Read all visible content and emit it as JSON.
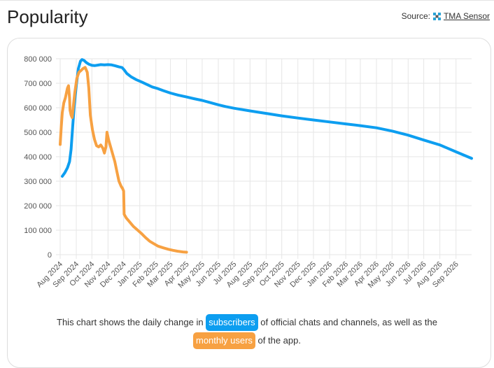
{
  "header": {
    "title": "Popularity",
    "source_label": "Source:",
    "source_link": "TMA Sensor",
    "source_icon": "sensor-logo-icon"
  },
  "caption": {
    "line1_before": "This chart shows the daily change in",
    "subscribers_label": "subscribers",
    "line1_after": "of official chats and channels, as well as the",
    "monthly_users_label": "monthly users",
    "line2_after": "of the app."
  },
  "chart_data": {
    "type": "line",
    "x_type": "date",
    "x_ticks": [
      "Aug 2024",
      "Sep 2024",
      "Oct 2024",
      "Nov 2024",
      "Dec 2024",
      "Jan 2025",
      "Feb 2025",
      "Mar 2025",
      "Apr 2025",
      "May 2025",
      "Jun 2025",
      "Jul 2025",
      "Aug 2025",
      "Sep 2025",
      "Oct 2025",
      "Nov 2025",
      "Dec 2025",
      "Jan 2026",
      "Feb 2026",
      "Mar 2026",
      "Apr 2026",
      "May 2026",
      "Jun 2026",
      "Jul 2026",
      "Aug 2026",
      "Sep 2026"
    ],
    "y_ticks": [
      0,
      100000,
      200000,
      300000,
      400000,
      500000,
      600000,
      700000,
      800000
    ],
    "y_tick_labels": [
      "0",
      "100 000",
      "200 000",
      "300 000",
      "400 000",
      "500 000",
      "600 000",
      "700 000",
      "800 000"
    ],
    "ylim": [
      0,
      800000
    ],
    "xlim": [
      "2024-08-01",
      "2026-10-01"
    ],
    "grid": true,
    "series": [
      {
        "name": "subscribers",
        "color": "#0d9ef0",
        "points": [
          [
            "2024-08-05",
            320000
          ],
          [
            "2024-08-10",
            335000
          ],
          [
            "2024-08-15",
            355000
          ],
          [
            "2024-08-19",
            380000
          ],
          [
            "2024-08-22",
            430000
          ],
          [
            "2024-08-25",
            520000
          ],
          [
            "2024-08-28",
            610000
          ],
          [
            "2024-09-01",
            690000
          ],
          [
            "2024-09-05",
            760000
          ],
          [
            "2024-09-09",
            790000
          ],
          [
            "2024-09-12",
            797000
          ],
          [
            "2024-09-16",
            793000
          ],
          [
            "2024-09-20",
            785000
          ],
          [
            "2024-09-25",
            778000
          ],
          [
            "2024-10-01",
            773000
          ],
          [
            "2024-10-06",
            772000
          ],
          [
            "2024-10-12",
            774000
          ],
          [
            "2024-10-18",
            776000
          ],
          [
            "2024-10-25",
            775000
          ],
          [
            "2024-11-01",
            776000
          ],
          [
            "2024-11-08",
            775000
          ],
          [
            "2024-11-15",
            771000
          ],
          [
            "2024-11-22",
            767000
          ],
          [
            "2024-11-28",
            764000
          ],
          [
            "2024-12-02",
            755000
          ],
          [
            "2024-12-07",
            740000
          ],
          [
            "2024-12-15",
            727000
          ],
          [
            "2024-12-25",
            715000
          ],
          [
            "2025-01-05",
            705000
          ],
          [
            "2025-01-15",
            695000
          ],
          [
            "2025-01-25",
            685000
          ],
          [
            "2025-02-05",
            678000
          ],
          [
            "2025-02-15",
            670000
          ],
          [
            "2025-03-01",
            660000
          ],
          [
            "2025-03-15",
            652000
          ],
          [
            "2025-04-01",
            644000
          ],
          [
            "2025-04-15",
            637000
          ],
          [
            "2025-05-01",
            630000
          ],
          [
            "2025-05-15",
            622000
          ],
          [
            "2025-06-01",
            612000
          ],
          [
            "2025-06-15",
            605000
          ],
          [
            "2025-07-01",
            598000
          ],
          [
            "2025-08-01",
            587000
          ],
          [
            "2025-09-01",
            577000
          ],
          [
            "2025-10-01",
            567000
          ],
          [
            "2025-11-01",
            558000
          ],
          [
            "2025-12-01",
            550000
          ],
          [
            "2026-01-01",
            542000
          ],
          [
            "2026-02-01",
            534000
          ],
          [
            "2026-03-01",
            527000
          ],
          [
            "2026-04-01",
            518000
          ],
          [
            "2026-05-01",
            505000
          ],
          [
            "2026-06-01",
            488000
          ],
          [
            "2026-07-01",
            468000
          ],
          [
            "2026-08-01",
            448000
          ],
          [
            "2026-09-01",
            420000
          ],
          [
            "2026-10-01",
            393000
          ]
        ]
      },
      {
        "name": "monthly users",
        "color": "#f7a142",
        "points": [
          [
            "2024-08-01",
            450000
          ],
          [
            "2024-08-03",
            520000
          ],
          [
            "2024-08-05",
            580000
          ],
          [
            "2024-08-08",
            620000
          ],
          [
            "2024-08-11",
            640000
          ],
          [
            "2024-08-13",
            660000
          ],
          [
            "2024-08-15",
            680000
          ],
          [
            "2024-08-17",
            690000
          ],
          [
            "2024-08-19",
            640000
          ],
          [
            "2024-08-20",
            590000
          ],
          [
            "2024-08-22",
            570000
          ],
          [
            "2024-08-24",
            560000
          ],
          [
            "2024-08-26",
            600000
          ],
          [
            "2024-08-29",
            660000
          ],
          [
            "2024-09-02",
            720000
          ],
          [
            "2024-09-06",
            745000
          ],
          [
            "2024-09-10",
            752000
          ],
          [
            "2024-09-14",
            760000
          ],
          [
            "2024-09-18",
            765000
          ],
          [
            "2024-09-22",
            745000
          ],
          [
            "2024-09-25",
            680000
          ],
          [
            "2024-09-28",
            570000
          ],
          [
            "2024-10-02",
            510000
          ],
          [
            "2024-10-06",
            470000
          ],
          [
            "2024-10-10",
            445000
          ],
          [
            "2024-10-14",
            440000
          ],
          [
            "2024-10-18",
            448000
          ],
          [
            "2024-10-22",
            435000
          ],
          [
            "2024-10-25",
            415000
          ],
          [
            "2024-10-28",
            440000
          ],
          [
            "2024-10-30",
            500000
          ],
          [
            "2024-11-02",
            470000
          ],
          [
            "2024-11-06",
            440000
          ],
          [
            "2024-11-10",
            410000
          ],
          [
            "2024-11-14",
            380000
          ],
          [
            "2024-11-18",
            340000
          ],
          [
            "2024-11-22",
            300000
          ],
          [
            "2024-11-26",
            280000
          ],
          [
            "2024-11-29",
            270000
          ],
          [
            "2024-12-01",
            260000
          ],
          [
            "2024-12-02",
            165000
          ],
          [
            "2024-12-06",
            150000
          ],
          [
            "2024-12-12",
            135000
          ],
          [
            "2024-12-20",
            115000
          ],
          [
            "2024-12-28",
            100000
          ],
          [
            "2025-01-05",
            85000
          ],
          [
            "2025-01-12",
            70000
          ],
          [
            "2025-01-20",
            55000
          ],
          [
            "2025-01-28",
            45000
          ],
          [
            "2025-02-05",
            35000
          ],
          [
            "2025-02-15",
            28000
          ],
          [
            "2025-02-25",
            22000
          ],
          [
            "2025-03-05",
            18000
          ],
          [
            "2025-03-15",
            14000
          ],
          [
            "2025-03-25",
            11000
          ],
          [
            "2025-04-01",
            10000
          ]
        ]
      }
    ]
  }
}
